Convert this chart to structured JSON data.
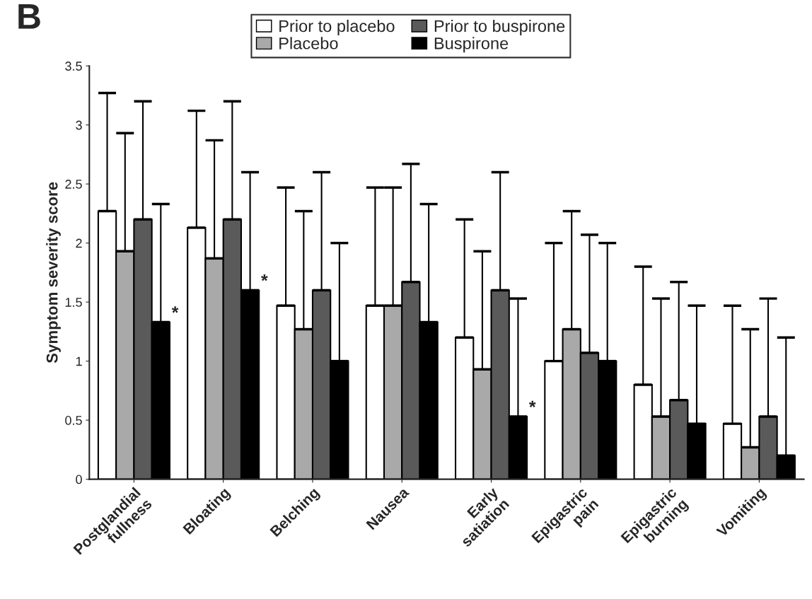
{
  "chart_data": {
    "type": "bar",
    "title": "B",
    "ylabel": "Symptom severity score",
    "categories": [
      "Postglandial\nfullness",
      "Bloating",
      "Belching",
      "Nausea",
      "Early\nsatiation",
      "Epigastric\npain",
      "Epigastric\nburning",
      "Vomiting"
    ],
    "series": [
      {
        "name": "Prior to placebo",
        "color": "#ffffff",
        "values": [
          2.27,
          2.13,
          1.47,
          1.47,
          1.2,
          1.0,
          0.8,
          0.47
        ],
        "errors": [
          [
            2.27,
            3.27
          ],
          [
            2.13,
            3.12
          ],
          [
            1.47,
            2.47
          ],
          [
            1.47,
            2.47
          ],
          [
            1.2,
            2.2
          ],
          [
            1.0,
            2.0
          ],
          [
            0.8,
            1.8
          ],
          [
            0.47,
            1.47
          ]
        ]
      },
      {
        "name": "Placebo",
        "color": "#a9a9a9",
        "values": [
          1.93,
          1.87,
          1.27,
          1.47,
          0.93,
          1.27,
          0.53,
          0.27
        ],
        "errors": [
          [
            1.93,
            2.93
          ],
          [
            1.87,
            2.87
          ],
          [
            1.27,
            2.27
          ],
          [
            1.47,
            2.47
          ],
          [
            0.93,
            1.93
          ],
          [
            1.27,
            2.27
          ],
          [
            0.53,
            1.53
          ],
          [
            0.27,
            1.27
          ]
        ]
      },
      {
        "name": "Prior to buspirone",
        "color": "#5a5a5a",
        "values": [
          2.2,
          2.2,
          1.6,
          1.67,
          1.6,
          1.07,
          0.67,
          0.53
        ],
        "errors": [
          [
            2.2,
            3.2
          ],
          [
            2.2,
            3.2
          ],
          [
            1.6,
            2.6
          ],
          [
            1.67,
            2.67
          ],
          [
            1.6,
            2.6
          ],
          [
            1.07,
            2.07
          ],
          [
            0.67,
            1.67
          ],
          [
            0.53,
            1.53
          ]
        ]
      },
      {
        "name": "Buspirone",
        "color": "#000000",
        "values": [
          1.33,
          1.6,
          1.0,
          1.33,
          0.53,
          1.0,
          0.47,
          0.2
        ],
        "value_labels": [
          "*",
          "*",
          null,
          null,
          "*",
          null,
          null,
          null
        ],
        "errors": [
          [
            1.33,
            2.33
          ],
          [
            1.6,
            2.6
          ],
          [
            1.0,
            2.0
          ],
          [
            1.33,
            2.33
          ],
          [
            0.53,
            1.53
          ],
          [
            1.0,
            2.0
          ],
          [
            0.47,
            1.47
          ],
          [
            0.2,
            1.2
          ]
        ]
      }
    ],
    "ylim": [
      0,
      3.5
    ],
    "yticks": [
      0,
      0.5,
      1,
      1.5,
      2,
      2.5,
      3,
      3.5
    ],
    "grid": false,
    "legend": "top"
  }
}
